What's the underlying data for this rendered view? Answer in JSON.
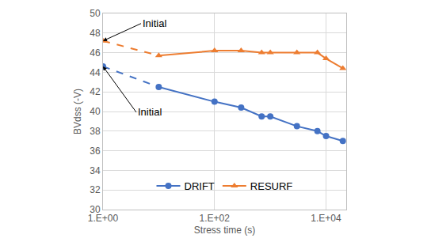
{
  "chart_data": {
    "type": "line",
    "x_label": "Stress time (s)",
    "y_label": "BVdss (-V)",
    "log": "x",
    "grid": true,
    "legend": "bottom",
    "xlim": [
      1,
      23000
    ],
    "xticks": [
      {
        "value": 1,
        "label": "1.E+00"
      },
      {
        "value": 100,
        "label": "1.E+02"
      },
      {
        "value": 10000,
        "label": "1.E+04"
      }
    ],
    "ylim": [
      30,
      50
    ],
    "yticks": [
      30,
      32,
      34,
      36,
      38,
      40,
      42,
      44,
      46,
      48,
      50
    ],
    "series": [
      {
        "name": "DRIFT",
        "color": "#4472c4",
        "marker": "circle",
        "line_style": "solid",
        "x": [
          1,
          10,
          100,
          300,
          700,
          1000,
          3000,
          7000,
          10000,
          20000
        ],
        "values": [
          44.6,
          42.5,
          41.0,
          40.4,
          39.5,
          39.5,
          38.5,
          38.0,
          37.5,
          37.0
        ]
      },
      {
        "name": "RESURF",
        "color": "#ed7d31",
        "marker": "triangle-up",
        "line_style": "solid",
        "x": [
          1,
          10,
          100,
          300,
          700,
          1000,
          3000,
          7000,
          10000,
          20000
        ],
        "values": [
          47.2,
          45.7,
          46.2,
          46.2,
          46.0,
          46.0,
          46.0,
          46.0,
          45.4,
          44.4
        ]
      }
    ],
    "annotations": [
      {
        "text": "Initial",
        "x": 1,
        "y": 47.2,
        "series": "RESURF"
      },
      {
        "text": "Initial",
        "x": 1,
        "y": 44.6,
        "series": "DRIFT"
      }
    ]
  }
}
